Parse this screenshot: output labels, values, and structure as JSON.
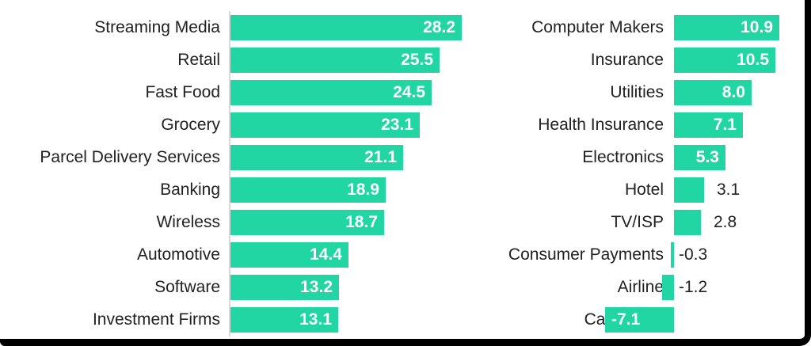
{
  "style": {
    "bar_color": "#22d6a3",
    "category_label_color": "#212121",
    "value_label_inside_color": "#ffffff",
    "value_label_outside_color": "#212121",
    "axis_line_color": "#d9d9d9",
    "frame_border_color": "#000000",
    "background_color": "#ffffff"
  },
  "chart_data": [
    {
      "type": "bar",
      "orientation": "horizontal",
      "title": "",
      "categories": [
        "Streaming Media",
        "Retail",
        "Fast Food",
        "Grocery",
        "Parcel Delivery Services",
        "Banking",
        "Wireless",
        "Automotive",
        "Software",
        "Investment Firms"
      ],
      "values": [
        28.2,
        25.5,
        24.5,
        23.1,
        21.1,
        18.9,
        18.7,
        14.4,
        13.2,
        13.1
      ],
      "value_labels": [
        "28.2",
        "25.5",
        "24.5",
        "23.1",
        "21.1",
        "18.9",
        "18.7",
        "14.4",
        "13.2",
        "13.1"
      ],
      "xlim": [
        0,
        28.2
      ],
      "grid": false,
      "legend": false,
      "value_label_position": "inside-end",
      "axis_baseline": true
    },
    {
      "type": "bar",
      "orientation": "horizontal",
      "title": "",
      "categories": [
        "Computer Makers",
        "Insurance",
        "Utilities",
        "Health Insurance",
        "Electronics",
        "Hotel",
        "TV/ISP",
        "Consumer Payments",
        "Airline",
        "Car Rental"
      ],
      "values": [
        10.9,
        10.5,
        8.0,
        7.1,
        5.3,
        3.1,
        2.8,
        -0.3,
        -1.2,
        -7.1
      ],
      "value_labels": [
        "10.9",
        "10.5",
        "8.0",
        "7.1",
        "5.3",
        "3.1",
        "2.8",
        "-0.3",
        "-1.2",
        "-7.1"
      ],
      "xlim": [
        -7.1,
        10.9
      ],
      "grid": false,
      "legend": false,
      "value_label_position": "inside-end-or-outside",
      "axis_baseline": false
    }
  ]
}
